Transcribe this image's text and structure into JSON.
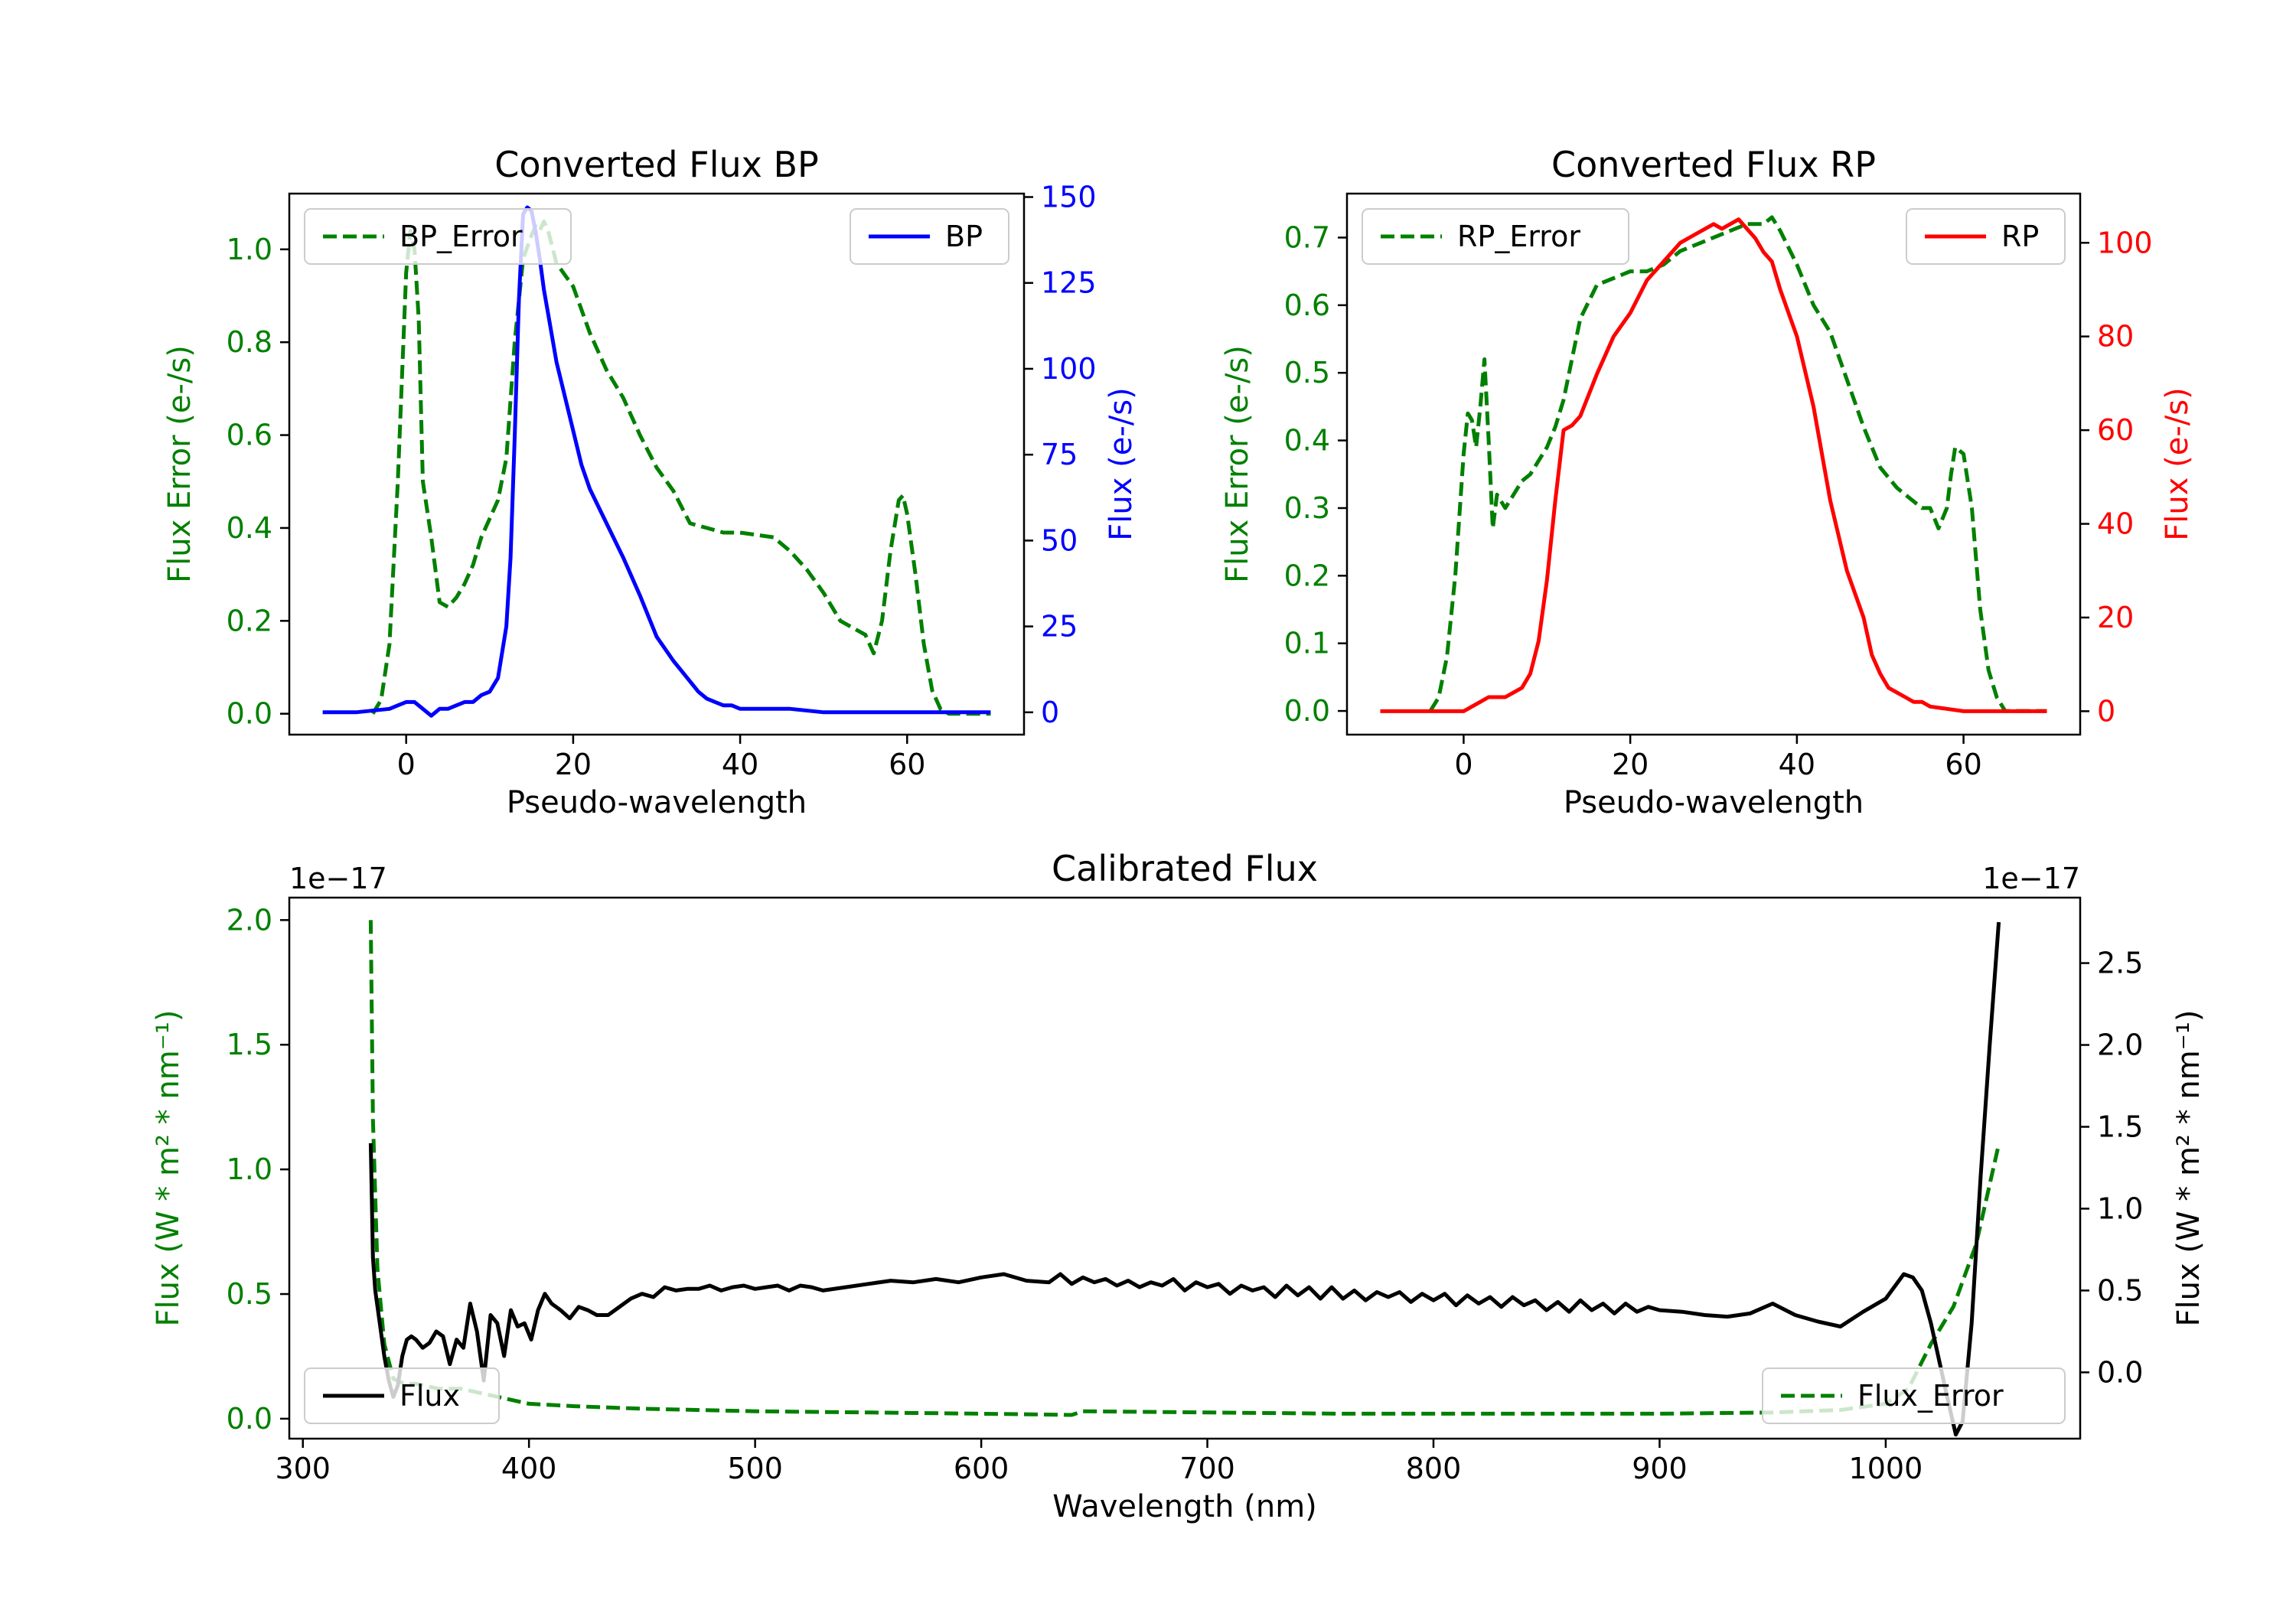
{
  "colors": {
    "error": "#008000",
    "bp": "#0000ff",
    "rp": "#ff0000",
    "flux": "#000000",
    "axis": "#000000"
  },
  "chart_data": [
    {
      "id": "bp",
      "type": "line",
      "title": "Converted Flux BP",
      "xlabel": "Pseudo-wavelength",
      "ylabel_left": "Flux Error (e-/s)",
      "ylabel_right": "Flux (e-/s)",
      "xlim": [
        -14,
        74
      ],
      "ylim_left": [
        -0.045,
        1.12
      ],
      "ylim_right": [
        -6.5,
        151
      ],
      "xticks": [
        0,
        20,
        40,
        60
      ],
      "yticks_left": [
        0.0,
        0.2,
        0.4,
        0.6,
        0.8,
        1.0
      ],
      "yticks_left_labels": [
        "0.0",
        "0.2",
        "0.4",
        "0.6",
        "0.8",
        "1.0"
      ],
      "yticks_right": [
        0,
        25,
        50,
        75,
        100,
        125,
        150
      ],
      "yticks_right_labels": [
        "0",
        "25",
        "50",
        "75",
        "100",
        "125",
        "150"
      ],
      "legend_left": "BP_Error",
      "legend_right": "BP",
      "series": [
        {
          "name": "BP_Error",
          "axis": "left",
          "style": "dashed",
          "color": "error",
          "x": [
            -4,
            -3,
            -2,
            -1,
            0,
            0.5,
            1,
            1.5,
            2,
            3,
            4,
            5,
            6,
            7,
            8,
            9,
            10,
            11,
            12,
            13,
            14,
            15,
            15.5,
            16,
            16.5,
            17,
            18,
            20,
            22,
            24,
            26,
            28,
            30,
            32,
            34,
            36,
            38,
            40,
            44,
            46,
            48,
            50,
            52,
            54,
            55,
            56,
            57,
            58,
            59,
            59.5,
            60,
            61,
            62,
            63,
            64,
            65,
            66,
            68,
            70
          ],
          "y": [
            0.0,
            0.03,
            0.15,
            0.5,
            0.95,
            1.04,
            1.0,
            0.85,
            0.5,
            0.38,
            0.24,
            0.23,
            0.25,
            0.28,
            0.32,
            0.38,
            0.42,
            0.46,
            0.55,
            0.8,
            0.98,
            1.03,
            1.05,
            1.04,
            1.06,
            1.04,
            0.97,
            0.92,
            0.82,
            0.74,
            0.68,
            0.6,
            0.53,
            0.48,
            0.41,
            0.4,
            0.39,
            0.39,
            0.38,
            0.35,
            0.31,
            0.26,
            0.2,
            0.18,
            0.17,
            0.13,
            0.2,
            0.35,
            0.46,
            0.47,
            0.43,
            0.3,
            0.15,
            0.05,
            0.01,
            0.0,
            0.0,
            0.0,
            0.0
          ]
        },
        {
          "name": "BP",
          "axis": "right",
          "style": "solid",
          "color": "bp",
          "x": [
            -10,
            -6,
            -2,
            -1,
            0,
            1,
            2,
            3,
            4,
            5,
            6,
            7,
            8,
            9,
            10,
            11,
            12,
            12.5,
            13,
            13.5,
            14,
            14.5,
            15,
            15.5,
            16,
            16.5,
            17,
            18,
            19,
            20,
            21,
            22,
            24,
            26,
            28,
            30,
            32,
            34,
            35,
            36,
            37,
            38,
            39,
            40,
            42,
            46,
            50,
            54,
            60,
            70
          ],
          "y": [
            0,
            0,
            1,
            2,
            3,
            3,
            1,
            -1,
            1,
            1,
            2,
            3,
            3,
            5,
            6,
            10,
            25,
            45,
            80,
            120,
            145,
            147,
            146,
            140,
            132,
            123,
            116,
            102,
            92,
            82,
            72,
            65,
            55,
            45,
            34,
            22,
            15,
            9,
            6,
            4,
            3,
            2,
            2,
            1,
            1,
            1,
            0,
            0,
            0,
            0
          ]
        }
      ]
    },
    {
      "id": "rp",
      "type": "line",
      "title": "Converted Flux RP",
      "xlabel": "Pseudo-wavelength",
      "ylabel_left": "Flux Error (e-/s)",
      "ylabel_right": "Flux (e-/s)",
      "xlim": [
        -14,
        74
      ],
      "ylim_left": [
        -0.035,
        0.765
      ],
      "ylim_right": [
        -5,
        110.5
      ],
      "xticks": [
        0,
        20,
        40,
        60
      ],
      "yticks_left": [
        0.0,
        0.1,
        0.2,
        0.3,
        0.4,
        0.5,
        0.6,
        0.7
      ],
      "yticks_left_labels": [
        "0.0",
        "0.1",
        "0.2",
        "0.3",
        "0.4",
        "0.5",
        "0.6",
        "0.7"
      ],
      "yticks_right": [
        0,
        20,
        40,
        60,
        80,
        100
      ],
      "yticks_right_labels": [
        "0",
        "20",
        "40",
        "60",
        "80",
        "100"
      ],
      "legend_left": "RP_Error",
      "legend_right": "RP",
      "series": [
        {
          "name": "RP_Error",
          "axis": "left",
          "style": "dashed",
          "color": "error",
          "x": [
            -4,
            -3,
            -2,
            -1,
            0,
            0.5,
            1,
            1.5,
            2,
            2.5,
            3,
            3.5,
            4,
            4.5,
            5,
            6,
            7,
            8,
            9,
            10,
            11,
            12,
            13,
            14,
            16,
            18,
            20,
            22,
            24,
            26,
            28,
            30,
            32,
            34,
            36,
            37,
            38,
            40,
            42,
            44,
            46,
            48,
            50,
            52,
            54,
            55,
            56,
            57,
            58,
            58.5,
            59,
            60,
            61,
            62,
            63,
            64,
            65,
            66,
            68,
            70
          ],
          "y": [
            0.0,
            0.02,
            0.08,
            0.2,
            0.38,
            0.44,
            0.43,
            0.39,
            0.45,
            0.52,
            0.4,
            0.27,
            0.32,
            0.31,
            0.3,
            0.32,
            0.34,
            0.35,
            0.37,
            0.39,
            0.42,
            0.46,
            0.52,
            0.58,
            0.63,
            0.64,
            0.65,
            0.65,
            0.66,
            0.68,
            0.69,
            0.7,
            0.71,
            0.72,
            0.72,
            0.73,
            0.71,
            0.66,
            0.6,
            0.56,
            0.49,
            0.42,
            0.36,
            0.33,
            0.31,
            0.3,
            0.3,
            0.27,
            0.3,
            0.35,
            0.39,
            0.38,
            0.3,
            0.15,
            0.06,
            0.02,
            0.0,
            0.0,
            0.0,
            0.0
          ]
        },
        {
          "name": "RP",
          "axis": "right",
          "style": "solid",
          "color": "rp",
          "x": [
            -10,
            -4,
            -1,
            0,
            1,
            2,
            3,
            4,
            5,
            6,
            7,
            8,
            9,
            10,
            11,
            12,
            13,
            14,
            16,
            18,
            20,
            22,
            24,
            26,
            28,
            29,
            30,
            31,
            32,
            33,
            34,
            35,
            36,
            37,
            38,
            40,
            42,
            44,
            46,
            48,
            49,
            50,
            51,
            52,
            53,
            54,
            55,
            56,
            58,
            60,
            62,
            70
          ],
          "y": [
            0,
            0,
            0,
            0,
            1,
            2,
            3,
            3,
            3,
            4,
            5,
            8,
            15,
            28,
            45,
            60,
            61,
            63,
            72,
            80,
            85,
            92,
            96,
            100,
            102,
            103,
            104,
            103,
            104,
            105,
            103,
            101,
            98,
            96,
            90,
            80,
            65,
            45,
            30,
            20,
            12,
            8,
            5,
            4,
            3,
            2,
            2,
            1,
            0.5,
            0,
            0,
            0
          ]
        }
      ]
    },
    {
      "id": "calibrated",
      "type": "line",
      "title": "Calibrated Flux",
      "xlabel": "Wavelength (nm)",
      "ylabel_left": "Flux (W * m² * nm⁻¹)",
      "ylabel_right": "Flux (W * m² * nm⁻¹)",
      "offset_left": "1e−17",
      "offset_right": "1e−17",
      "xlim": [
        294,
        1086
      ],
      "ylim_left": [
        -0.08,
        2.09
      ],
      "ylim_right": [
        -0.405,
        2.9
      ],
      "xticks": [
        300,
        400,
        500,
        600,
        700,
        800,
        900,
        1000
      ],
      "yticks_left": [
        0.0,
        0.5,
        1.0,
        1.5,
        2.0
      ],
      "yticks_left_labels": [
        "0.0",
        "0.5",
        "1.0",
        "1.5",
        "2.0"
      ],
      "yticks_right": [
        0.0,
        0.5,
        1.0,
        1.5,
        2.0,
        2.5
      ],
      "yticks_right_labels": [
        "0.0",
        "0.5",
        "1.0",
        "1.5",
        "2.0",
        "2.5"
      ],
      "legend_left": "Flux",
      "legend_right": "Flux_Error",
      "series": [
        {
          "name": "Flux_Error",
          "axis": "left",
          "style": "dashed",
          "color": "error",
          "x": [
            330,
            331,
            333,
            336,
            340,
            345,
            350,
            360,
            370,
            380,
            390,
            400,
            420,
            450,
            500,
            550,
            600,
            640,
            645,
            700,
            760,
            800,
            850,
            900,
            950,
            980,
            1000,
            1010,
            1020,
            1030,
            1040,
            1050
          ],
          "y": [
            2.0,
            1.2,
            0.6,
            0.3,
            0.16,
            0.14,
            0.14,
            0.12,
            0.12,
            0.1,
            0.08,
            0.06,
            0.05,
            0.04,
            0.03,
            0.025,
            0.02,
            0.015,
            0.03,
            0.025,
            0.02,
            0.02,
            0.02,
            0.02,
            0.025,
            0.035,
            0.06,
            0.12,
            0.3,
            0.45,
            0.7,
            1.1
          ]
        },
        {
          "name": "Flux",
          "axis": "right",
          "style": "solid",
          "color": "flux",
          "x": [
            330,
            331,
            332,
            334,
            336,
            338,
            340,
            342,
            344,
            346,
            348,
            350,
            353,
            356,
            359,
            362,
            365,
            368,
            371,
            374,
            377,
            380,
            383,
            386,
            389,
            392,
            395,
            398,
            401,
            404,
            407,
            410,
            414,
            418,
            422,
            426,
            430,
            435,
            440,
            445,
            450,
            455,
            460,
            465,
            470,
            475,
            480,
            485,
            490,
            495,
            500,
            505,
            510,
            515,
            520,
            525,
            530,
            540,
            550,
            560,
            570,
            580,
            590,
            600,
            610,
            620,
            630,
            635,
            640,
            645,
            650,
            655,
            660,
            665,
            670,
            675,
            680,
            685,
            690,
            695,
            700,
            705,
            710,
            715,
            720,
            725,
            730,
            735,
            740,
            745,
            750,
            755,
            760,
            765,
            770,
            775,
            780,
            785,
            790,
            795,
            800,
            805,
            810,
            815,
            820,
            825,
            830,
            835,
            840,
            845,
            850,
            855,
            860,
            865,
            870,
            875,
            880,
            885,
            890,
            895,
            900,
            910,
            920,
            930,
            940,
            950,
            960,
            970,
            980,
            990,
            1000,
            1008,
            1012,
            1016,
            1020,
            1024,
            1028,
            1031,
            1034,
            1038,
            1042,
            1046,
            1050
          ],
          "y": [
            1.4,
            0.7,
            0.5,
            0.3,
            0.1,
            -0.05,
            -0.15,
            -0.08,
            0.1,
            0.2,
            0.22,
            0.2,
            0.15,
            0.18,
            0.25,
            0.22,
            0.05,
            0.2,
            0.15,
            0.42,
            0.25,
            -0.05,
            0.35,
            0.3,
            0.1,
            0.38,
            0.28,
            0.3,
            0.2,
            0.38,
            0.48,
            0.42,
            0.38,
            0.33,
            0.4,
            0.38,
            0.35,
            0.35,
            0.4,
            0.45,
            0.48,
            0.46,
            0.52,
            0.5,
            0.51,
            0.51,
            0.53,
            0.5,
            0.52,
            0.53,
            0.51,
            0.52,
            0.53,
            0.5,
            0.53,
            0.52,
            0.5,
            0.52,
            0.54,
            0.56,
            0.55,
            0.57,
            0.55,
            0.58,
            0.6,
            0.56,
            0.55,
            0.6,
            0.54,
            0.58,
            0.55,
            0.57,
            0.53,
            0.56,
            0.52,
            0.55,
            0.53,
            0.57,
            0.5,
            0.55,
            0.52,
            0.54,
            0.48,
            0.53,
            0.5,
            0.52,
            0.46,
            0.53,
            0.47,
            0.52,
            0.45,
            0.52,
            0.45,
            0.5,
            0.44,
            0.49,
            0.46,
            0.49,
            0.43,
            0.48,
            0.44,
            0.48,
            0.41,
            0.47,
            0.42,
            0.46,
            0.4,
            0.46,
            0.41,
            0.44,
            0.38,
            0.43,
            0.37,
            0.44,
            0.38,
            0.42,
            0.36,
            0.42,
            0.37,
            0.4,
            0.38,
            0.37,
            0.35,
            0.34,
            0.36,
            0.42,
            0.35,
            0.31,
            0.28,
            0.37,
            0.45,
            0.6,
            0.58,
            0.5,
            0.3,
            0.05,
            -0.2,
            -0.38,
            -0.3,
            0.3,
            1.2,
            2.0,
            2.75
          ]
        }
      ]
    }
  ]
}
